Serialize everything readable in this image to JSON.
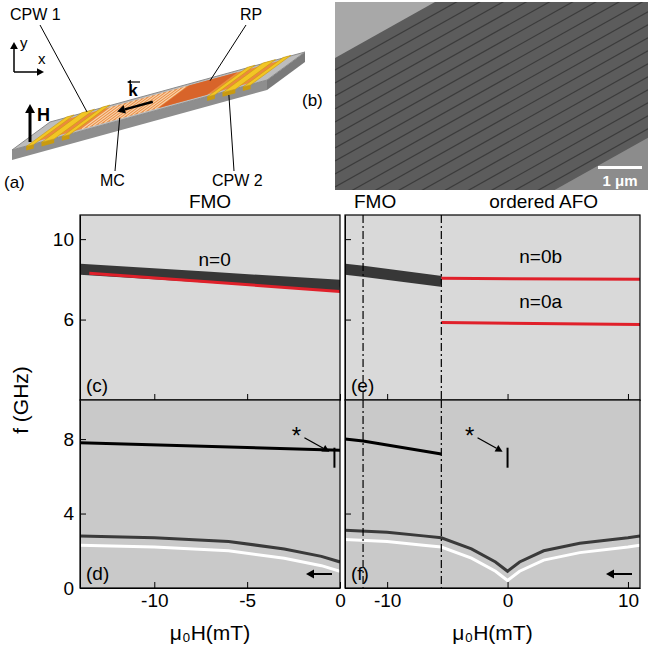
{
  "diagram": {
    "panel": "(a)",
    "labels": {
      "cpw1": "CPW 1",
      "cpw2": "CPW 2",
      "rp": "RP",
      "mc": "MC",
      "field": "H",
      "wavevector": "k",
      "axis_x": "x",
      "axis_y": "y"
    }
  },
  "image": {
    "panel": "(b)",
    "scale_bar": "1 μm"
  },
  "chart_data": [
    {
      "type": "line",
      "panel": "(c)",
      "title": "FMO",
      "ylabel": "f (GHz)",
      "xlim": [
        -14,
        0
      ],
      "ylim": [
        2,
        11.2
      ],
      "xticks": [
        -10,
        -5,
        0
      ],
      "yticks": [
        6,
        10
      ],
      "tick_labels": "y",
      "series": [
        {
          "color": "#1a1a1a",
          "line_style": "band",
          "x": [
            -14,
            -7,
            0
          ],
          "values": [
            8.5,
            8.1,
            7.7
          ]
        },
        {
          "name": "n=0",
          "color": "#e0202a",
          "line_style": "solid",
          "x": [
            -13.5,
            0
          ],
          "values": [
            8.3,
            7.4
          ]
        }
      ]
    },
    {
      "type": "line",
      "panel": "(d)",
      "xlabel": "μ₀H(mT)",
      "xlim": [
        -14,
        0
      ],
      "ylim": [
        0,
        10.1
      ],
      "xticks": [
        -10,
        -5,
        0
      ],
      "yticks": [
        0,
        4,
        8
      ],
      "series": [
        {
          "color": "#000000",
          "line_style": "solid",
          "x": [
            -14,
            0
          ],
          "values": [
            7.8,
            7.4
          ]
        },
        {
          "color": "#3a3a3a",
          "line_style": "solid",
          "x": [
            -14,
            -10,
            -6,
            -3,
            -1,
            0
          ],
          "values": [
            2.8,
            2.7,
            2.5,
            2.1,
            1.7,
            1.4
          ]
        },
        {
          "color": "#ffffff",
          "line_style": "solid",
          "x": [
            -14,
            -10,
            -6,
            -3,
            -1,
            0
          ],
          "values": [
            2.3,
            2.2,
            2.0,
            1.6,
            1.2,
            0.9
          ]
        }
      ],
      "annotations": [
        {
          "text": "*",
          "x": -0.3,
          "y": 7.0
        }
      ]
    },
    {
      "type": "line",
      "panel": "(e)",
      "xlim": [
        -13.5,
        11
      ],
      "ylim": [
        2,
        11.2
      ],
      "xticks": [
        -10,
        0,
        10
      ],
      "yticks": [
        6,
        10
      ],
      "tick_labels": false,
      "vlines": [
        -12,
        -5.5
      ],
      "series": [
        {
          "color": "#1a1a1a",
          "line_style": "band",
          "x": [
            -13.5,
            -12,
            -5.5
          ],
          "values": [
            8.5,
            8.4,
            7.9
          ]
        },
        {
          "name": "n=0b",
          "color": "#e0202a",
          "line_style": "solid",
          "x": [
            -5.5,
            11
          ],
          "values": [
            8.05,
            8.0
          ]
        },
        {
          "name": "n=0a",
          "color": "#e0202a",
          "line_style": "solid",
          "x": [
            -5.5,
            11
          ],
          "values": [
            5.85,
            5.75
          ]
        }
      ],
      "annotations": [
        {
          "text": "FMO",
          "x": -11
        },
        {
          "text": "ordered AFO",
          "x": 3
        }
      ]
    },
    {
      "type": "line",
      "panel": "(f)",
      "xlabel": "μ₀H(mT)",
      "xlim": [
        -13.5,
        11
      ],
      "ylim": [
        0,
        10.1
      ],
      "xticks": [
        -10,
        0,
        10
      ],
      "yticks": [
        0,
        4,
        8
      ],
      "tick_labels": "x",
      "vlines": [
        -12,
        -5.5
      ],
      "series": [
        {
          "color": "#000000",
          "line_style": "solid",
          "x": [
            -13.5,
            -12,
            -5.5
          ],
          "values": [
            8.0,
            7.9,
            7.2
          ]
        },
        {
          "color": "#3a3a3a",
          "line_style": "solid",
          "x": [
            -13.5,
            -10,
            -7,
            -5.5,
            -3,
            -1,
            0,
            1,
            3,
            6,
            10,
            11
          ],
          "values": [
            3.1,
            3.0,
            2.8,
            2.7,
            2.1,
            1.4,
            0.9,
            1.4,
            2.0,
            2.4,
            2.7,
            2.8
          ]
        },
        {
          "color": "#ffffff",
          "line_style": "solid",
          "x": [
            -13.5,
            -10,
            -7,
            -5.5,
            -3,
            -1,
            0,
            1,
            3,
            6,
            10,
            11
          ],
          "values": [
            2.6,
            2.5,
            2.3,
            2.2,
            1.6,
            0.9,
            0.4,
            0.9,
            1.5,
            1.9,
            2.2,
            2.3
          ]
        }
      ],
      "annotations": [
        {
          "text": "*",
          "x": 0,
          "y": 7.0
        }
      ]
    }
  ]
}
